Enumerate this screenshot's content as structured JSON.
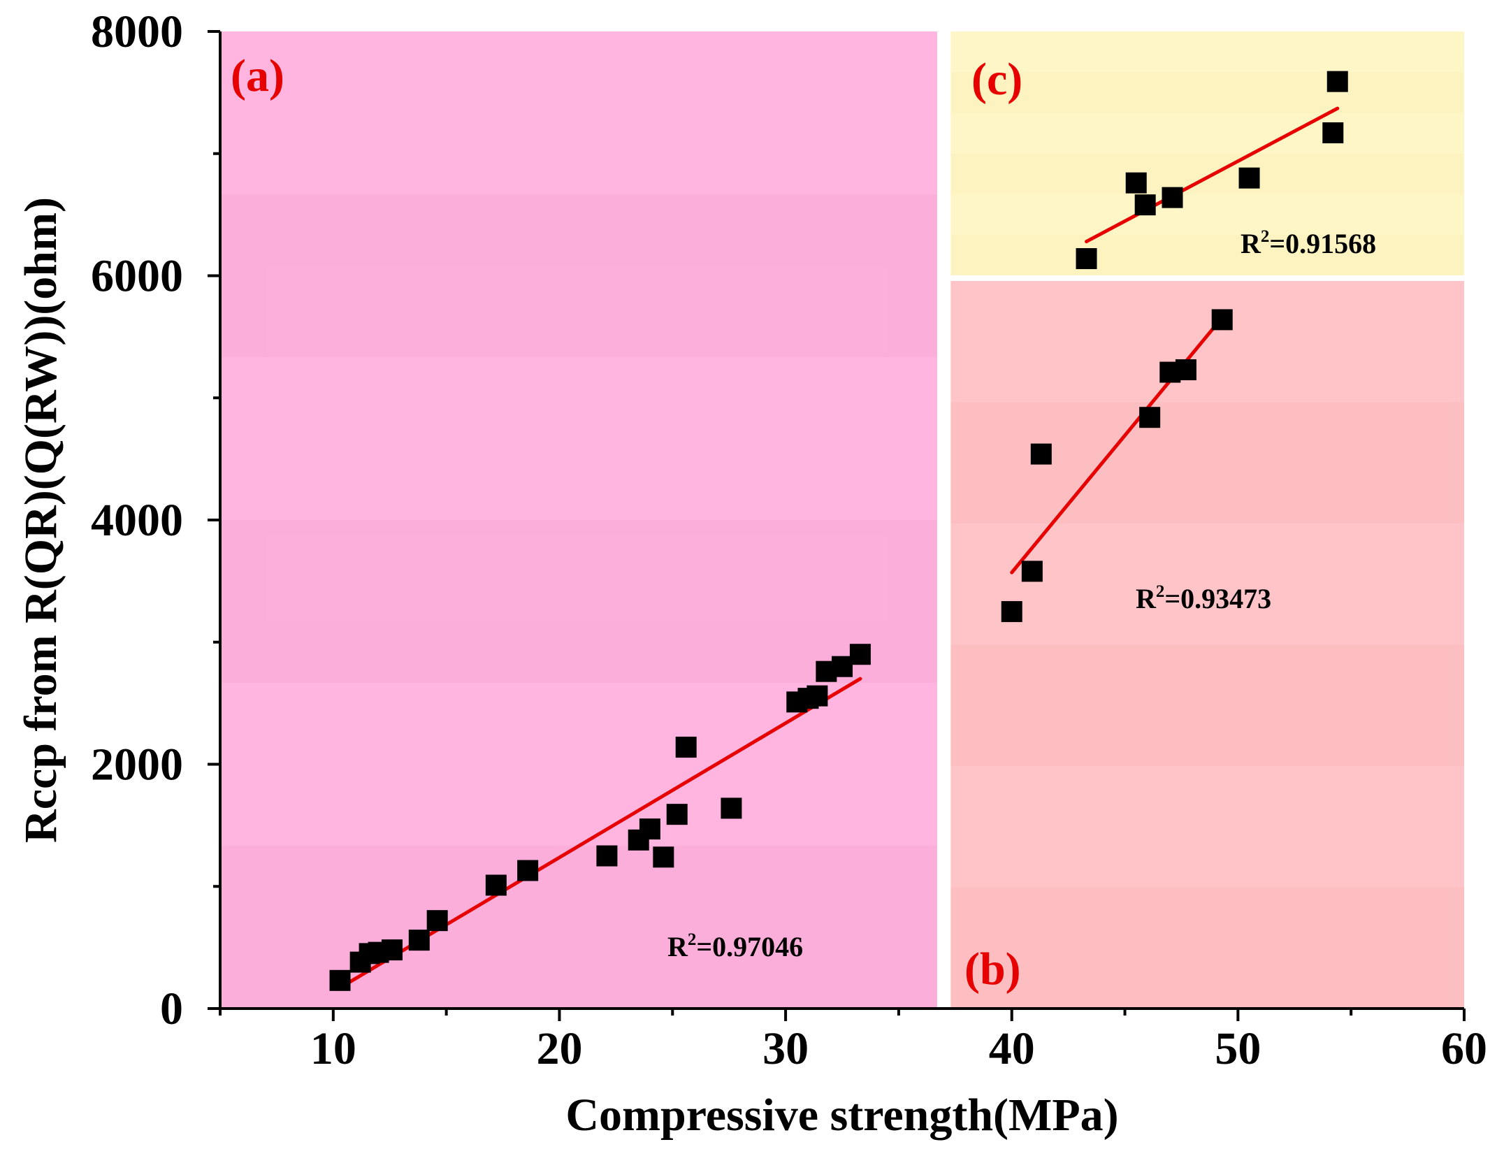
{
  "chart_data": {
    "type": "scatter",
    "xlabel": "Compressive strength(MPa)",
    "ylabel": "Rccp from R(QR)(Q(RW))(ohm)",
    "xlim": [
      5,
      60
    ],
    "ylim": [
      0,
      8000
    ],
    "x_ticks": [
      "10",
      "20",
      "30",
      "40",
      "50",
      "60"
    ],
    "y_ticks": [
      "0",
      "2000",
      "4000",
      "6000",
      "8000"
    ],
    "grid": false,
    "colors": {
      "region_a": "#ffb1de",
      "region_b": "#ffc1c4",
      "region_c": "#fff6c4",
      "marker": "#000000",
      "fit_line": "#e60000",
      "panel_tag": "#e60000"
    },
    "regions": [
      {
        "tag": "(a)",
        "x_range": [
          5,
          36.7
        ],
        "y_range": [
          0,
          8000
        ],
        "r2_label": "R²=0.97046",
        "r2_base": "R",
        "r2_sup": "2",
        "r2_rest": "=0.97046",
        "points": [
          [
            10.3,
            230
          ],
          [
            11.2,
            380
          ],
          [
            11.6,
            450
          ],
          [
            12.0,
            460
          ],
          [
            12.6,
            480
          ],
          [
            13.8,
            560
          ],
          [
            14.6,
            720
          ],
          [
            17.2,
            1010
          ],
          [
            18.6,
            1130
          ],
          [
            22.1,
            1250
          ],
          [
            23.5,
            1380
          ],
          [
            24.0,
            1470
          ],
          [
            24.6,
            1240
          ],
          [
            25.2,
            1590
          ],
          [
            25.6,
            2140
          ],
          [
            27.6,
            1640
          ],
          [
            30.5,
            2510
          ],
          [
            31.0,
            2540
          ],
          [
            31.4,
            2560
          ],
          [
            31.8,
            2760
          ],
          [
            32.5,
            2800
          ],
          [
            33.3,
            2900
          ]
        ],
        "fit": [
          [
            10.3,
            170
          ],
          [
            33.3,
            2700
          ]
        ]
      },
      {
        "tag": "(b)",
        "x_range": [
          37.3,
          60
        ],
        "y_range": [
          0,
          5980
        ],
        "r2_label": "R²=0.93473",
        "r2_base": "R",
        "r2_sup": "2",
        "r2_rest": "=0.93473",
        "points": [
          [
            40.0,
            3250
          ],
          [
            40.9,
            3580
          ],
          [
            41.3,
            4540
          ],
          [
            46.1,
            4840
          ],
          [
            47.0,
            5210
          ],
          [
            47.7,
            5230
          ],
          [
            49.3,
            5640
          ]
        ],
        "fit": [
          [
            40.0,
            3570
          ],
          [
            49.4,
            5680
          ]
        ]
      },
      {
        "tag": "(c)",
        "x_range": [
          37.3,
          60
        ],
        "y_range": [
          5980,
          8000
        ],
        "r2_label": "R²=0.91568",
        "r2_base": "R",
        "r2_sup": "2",
        "r2_rest": "=0.91568",
        "points": [
          [
            43.3,
            6140
          ],
          [
            45.5,
            6760
          ],
          [
            45.9,
            6580
          ],
          [
            47.1,
            6640
          ],
          [
            50.5,
            6800
          ],
          [
            54.2,
            7170
          ],
          [
            54.4,
            7590
          ]
        ],
        "fit": [
          [
            43.3,
            6280
          ],
          [
            54.4,
            7370
          ]
        ]
      }
    ]
  }
}
